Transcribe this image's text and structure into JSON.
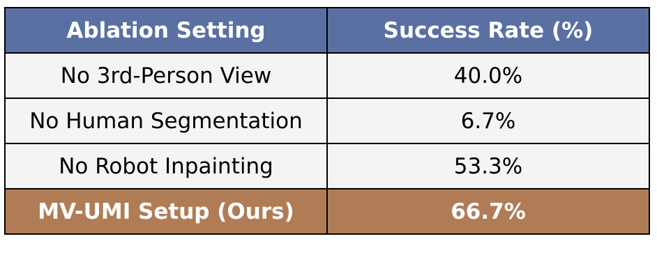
{
  "chart_data": {
    "type": "table",
    "columns": [
      "Ablation Setting",
      "Success Rate (%)"
    ],
    "rows": [
      {
        "setting": "No 3rd-Person View",
        "success_rate": "40.0%"
      },
      {
        "setting": "No Human Segmentation",
        "success_rate": "6.7%"
      },
      {
        "setting": "No Robot Inpainting",
        "success_rate": "53.3%"
      },
      {
        "setting": "MV-UMI Setup (Ours)",
        "success_rate": "66.7%",
        "highlighted": true
      }
    ],
    "values": [
      40.0,
      6.7,
      53.3,
      66.7
    ]
  },
  "colors": {
    "header_bg": "#5a70a3",
    "header_text": "#ffffff",
    "row_bg": "#f4f4f4",
    "highlight_bg": "#b07c56",
    "highlight_text": "#ffffff",
    "border": "#000000"
  }
}
